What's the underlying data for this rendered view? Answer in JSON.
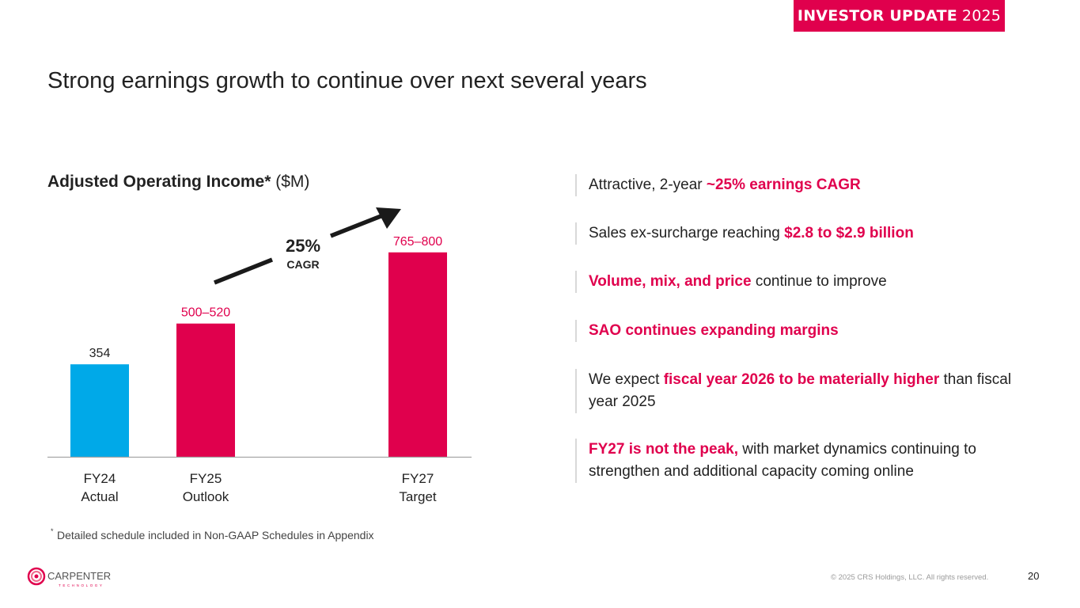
{
  "header": {
    "badge_bold": "INVESTOR UPDATE",
    "badge_year": "2025",
    "title": "Strong earnings growth to continue over next several years"
  },
  "chart_section": {
    "title_bold": "Adjusted Operating Income*",
    "title_unit": " ($M)",
    "cagr_value": "25%",
    "cagr_label": "CAGR",
    "footnote_marker": "*",
    "footnote": "Detailed schedule included in Non-GAAP Schedules in Appendix"
  },
  "chart_data": {
    "type": "bar",
    "title": "Adjusted Operating Income* ($M)",
    "xlabel": "",
    "ylabel": "",
    "ylim": [
      0,
      800
    ],
    "grid": false,
    "legend": "none",
    "categories": [
      "FY24 Actual",
      "FY25 Outlook",
      "FY27 Target"
    ],
    "category_lines": [
      [
        "FY24",
        "Actual"
      ],
      [
        "FY25",
        "Outlook"
      ],
      [
        "FY27",
        "Target"
      ]
    ],
    "values": [
      354,
      510,
      782.5
    ],
    "ranges": [
      [
        354,
        354
      ],
      [
        500,
        520
      ],
      [
        765,
        800
      ]
    ],
    "data_labels": [
      "354",
      "500–520",
      "765–800"
    ],
    "colors": [
      "#00a9e8",
      "#e0004d",
      "#e0004d"
    ],
    "label_colors": [
      "#222222",
      "#e0004d",
      "#e0004d"
    ],
    "annotations": [
      {
        "text": "25% CAGR",
        "type": "arrow",
        "from": "FY25 Outlook",
        "to": "FY27 Target"
      }
    ]
  },
  "bullets": [
    {
      "parts": [
        {
          "t": "Attractive, 2-year ",
          "hl": false
        },
        {
          "t": "~25% earnings CAGR",
          "hl": true
        }
      ]
    },
    {
      "parts": [
        {
          "t": "Sales ex-surcharge reaching ",
          "hl": false
        },
        {
          "t": "$2.8 to $2.9 billion",
          "hl": true
        }
      ]
    },
    {
      "parts": [
        {
          "t": "Volume, mix, and price",
          "hl": true
        },
        {
          "t": " continue to improve",
          "hl": false
        }
      ]
    },
    {
      "parts": [
        {
          "t": "SAO continues expanding margins",
          "hl": true
        }
      ]
    },
    {
      "parts": [
        {
          "t": "We expect ",
          "hl": false
        },
        {
          "t": "fiscal year 2026 to be materially higher",
          "hl": true
        },
        {
          "t": " than fiscal year 2025",
          "hl": false
        }
      ]
    },
    {
      "parts": [
        {
          "t": "FY27 is not the peak,",
          "hl": true
        },
        {
          "t": " with market dynamics continuing to strengthen and additional capacity coming online",
          "hl": false
        }
      ]
    }
  ],
  "footer": {
    "logo_name": "CARPENTER",
    "logo_sub": "TECHNOLOGY",
    "copyright": "© 2025 CRS Holdings, LLC. All rights reserved.",
    "page_number": "20"
  },
  "colors": {
    "accent": "#e0004d",
    "actual": "#00a9e8",
    "text": "#222222"
  }
}
